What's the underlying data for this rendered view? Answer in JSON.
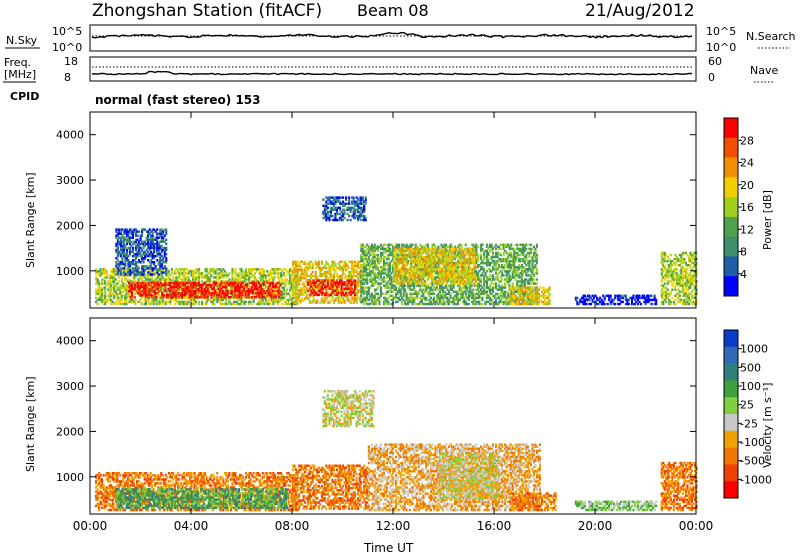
{
  "header": {
    "station": "Zhongshan Station (fitACF)",
    "beam": "Beam 08",
    "date": "21/Aug/2012"
  },
  "noise_panel": {
    "left_label": "N.Sky",
    "right_label": "N.Search",
    "left_ticks": [
      "10^5",
      "10^0"
    ],
    "right_ticks": [
      "10^5",
      "10^0"
    ]
  },
  "freq_panel": {
    "left_label_1": "Freq.",
    "left_label_2": "[MHz]",
    "right_label": "Nave",
    "left_ticks": [
      "18",
      "8"
    ],
    "right_ticks": [
      "60",
      "0"
    ]
  },
  "cpid": {
    "label": "CPID",
    "text": "normal (fast stereo) 153"
  },
  "colors": {
    "power_scale": [
      "#0000ff",
      "#1f5fa8",
      "#3f8f6f",
      "#4fa04f",
      "#a0d020",
      "#f0d000",
      "#f09000",
      "#f05000",
      "#ff0000"
    ],
    "velocity_scale": [
      "#0a3cc8",
      "#3168b8",
      "#2f7f7f",
      "#3f9f3f",
      "#7fcf3f",
      "#c8c8c8",
      "#f0a000",
      "#f07800",
      "#f04000",
      "#ff0000"
    ]
  },
  "chart_data": [
    {
      "type": "heatmap",
      "name": "power",
      "ylabel": "Slant Range [km]",
      "yticks": [
        "1000",
        "2000",
        "3000",
        "4000"
      ],
      "xticks": [
        "00:00",
        "04:00",
        "08:00",
        "12:00",
        "16:00",
        "20:00",
        "00:00"
      ],
      "colorbar_label": "Power [dB]",
      "colorbar_ticks": [
        "4",
        "8",
        "12",
        "16",
        "20",
        "24",
        "28"
      ],
      "ylim": [
        180,
        4500
      ],
      "xlim": [
        0,
        24
      ],
      "regions": [
        {
          "t0": 0.2,
          "t1": 8.2,
          "r0": 250,
          "r1": 1050,
          "level": 4
        },
        {
          "t0": 1.5,
          "t1": 7.5,
          "r0": 400,
          "r1": 750,
          "level": 8
        },
        {
          "t0": 8.0,
          "t1": 10.8,
          "r0": 280,
          "r1": 1200,
          "level": 5
        },
        {
          "t0": 8.6,
          "t1": 10.5,
          "r0": 450,
          "r1": 800,
          "level": 8
        },
        {
          "t0": 10.7,
          "t1": 17.7,
          "r0": 250,
          "r1": 1600,
          "level": 3
        },
        {
          "t0": 12.0,
          "t1": 15.3,
          "r0": 700,
          "r1": 1500,
          "level": 5
        },
        {
          "t0": 1.0,
          "t1": 3.0,
          "r0": 900,
          "r1": 1900,
          "level": 1
        },
        {
          "t0": 9.2,
          "t1": 10.9,
          "r0": 2100,
          "r1": 2600,
          "level": 1
        },
        {
          "t0": 16.6,
          "t1": 18.2,
          "r0": 250,
          "r1": 650,
          "level": 5
        },
        {
          "t0": 22.6,
          "t1": 24.0,
          "r0": 250,
          "r1": 1400,
          "level": 4
        },
        {
          "t0": 19.2,
          "t1": 22.4,
          "r0": 250,
          "r1": 450,
          "level": 0
        }
      ]
    },
    {
      "type": "heatmap",
      "name": "velocity",
      "ylabel": "Slant Range [km]",
      "yticks": [
        "1000",
        "2000",
        "3000",
        "4000"
      ],
      "xticks": [
        "00:00",
        "04:00",
        "08:00",
        "12:00",
        "16:00",
        "20:00",
        "00:00"
      ],
      "xlabel": "Time UT",
      "colorbar_label": "Velocity [m s⁻¹]",
      "colorbar_ticks": [
        "1000",
        "500",
        "100",
        "25",
        "-25",
        "-100",
        "-500",
        "-1000"
      ],
      "ylim": [
        180,
        4500
      ],
      "xlim": [
        0,
        24
      ],
      "regions": [
        {
          "t0": 0.2,
          "t1": 8.2,
          "r0": 250,
          "r1": 1100,
          "level": 7
        },
        {
          "t0": 1.0,
          "t1": 7.8,
          "r0": 300,
          "r1": 750,
          "level": 3
        },
        {
          "t0": 8.0,
          "t1": 11.0,
          "r0": 280,
          "r1": 1250,
          "level": 7
        },
        {
          "t0": 11.0,
          "t1": 17.8,
          "r0": 250,
          "r1": 1700,
          "level": 6
        },
        {
          "t0": 9.2,
          "t1": 11.2,
          "r0": 2100,
          "r1": 2900,
          "level": 5
        },
        {
          "t0": 13.8,
          "t1": 16.2,
          "r0": 500,
          "r1": 1500,
          "level": 5
        },
        {
          "t0": 16.6,
          "t1": 18.4,
          "r0": 250,
          "r1": 650,
          "level": 7
        },
        {
          "t0": 19.2,
          "t1": 22.4,
          "r0": 250,
          "r1": 450,
          "level": 4
        },
        {
          "t0": 22.6,
          "t1": 24.0,
          "r0": 250,
          "r1": 1300,
          "level": 7
        }
      ]
    }
  ]
}
